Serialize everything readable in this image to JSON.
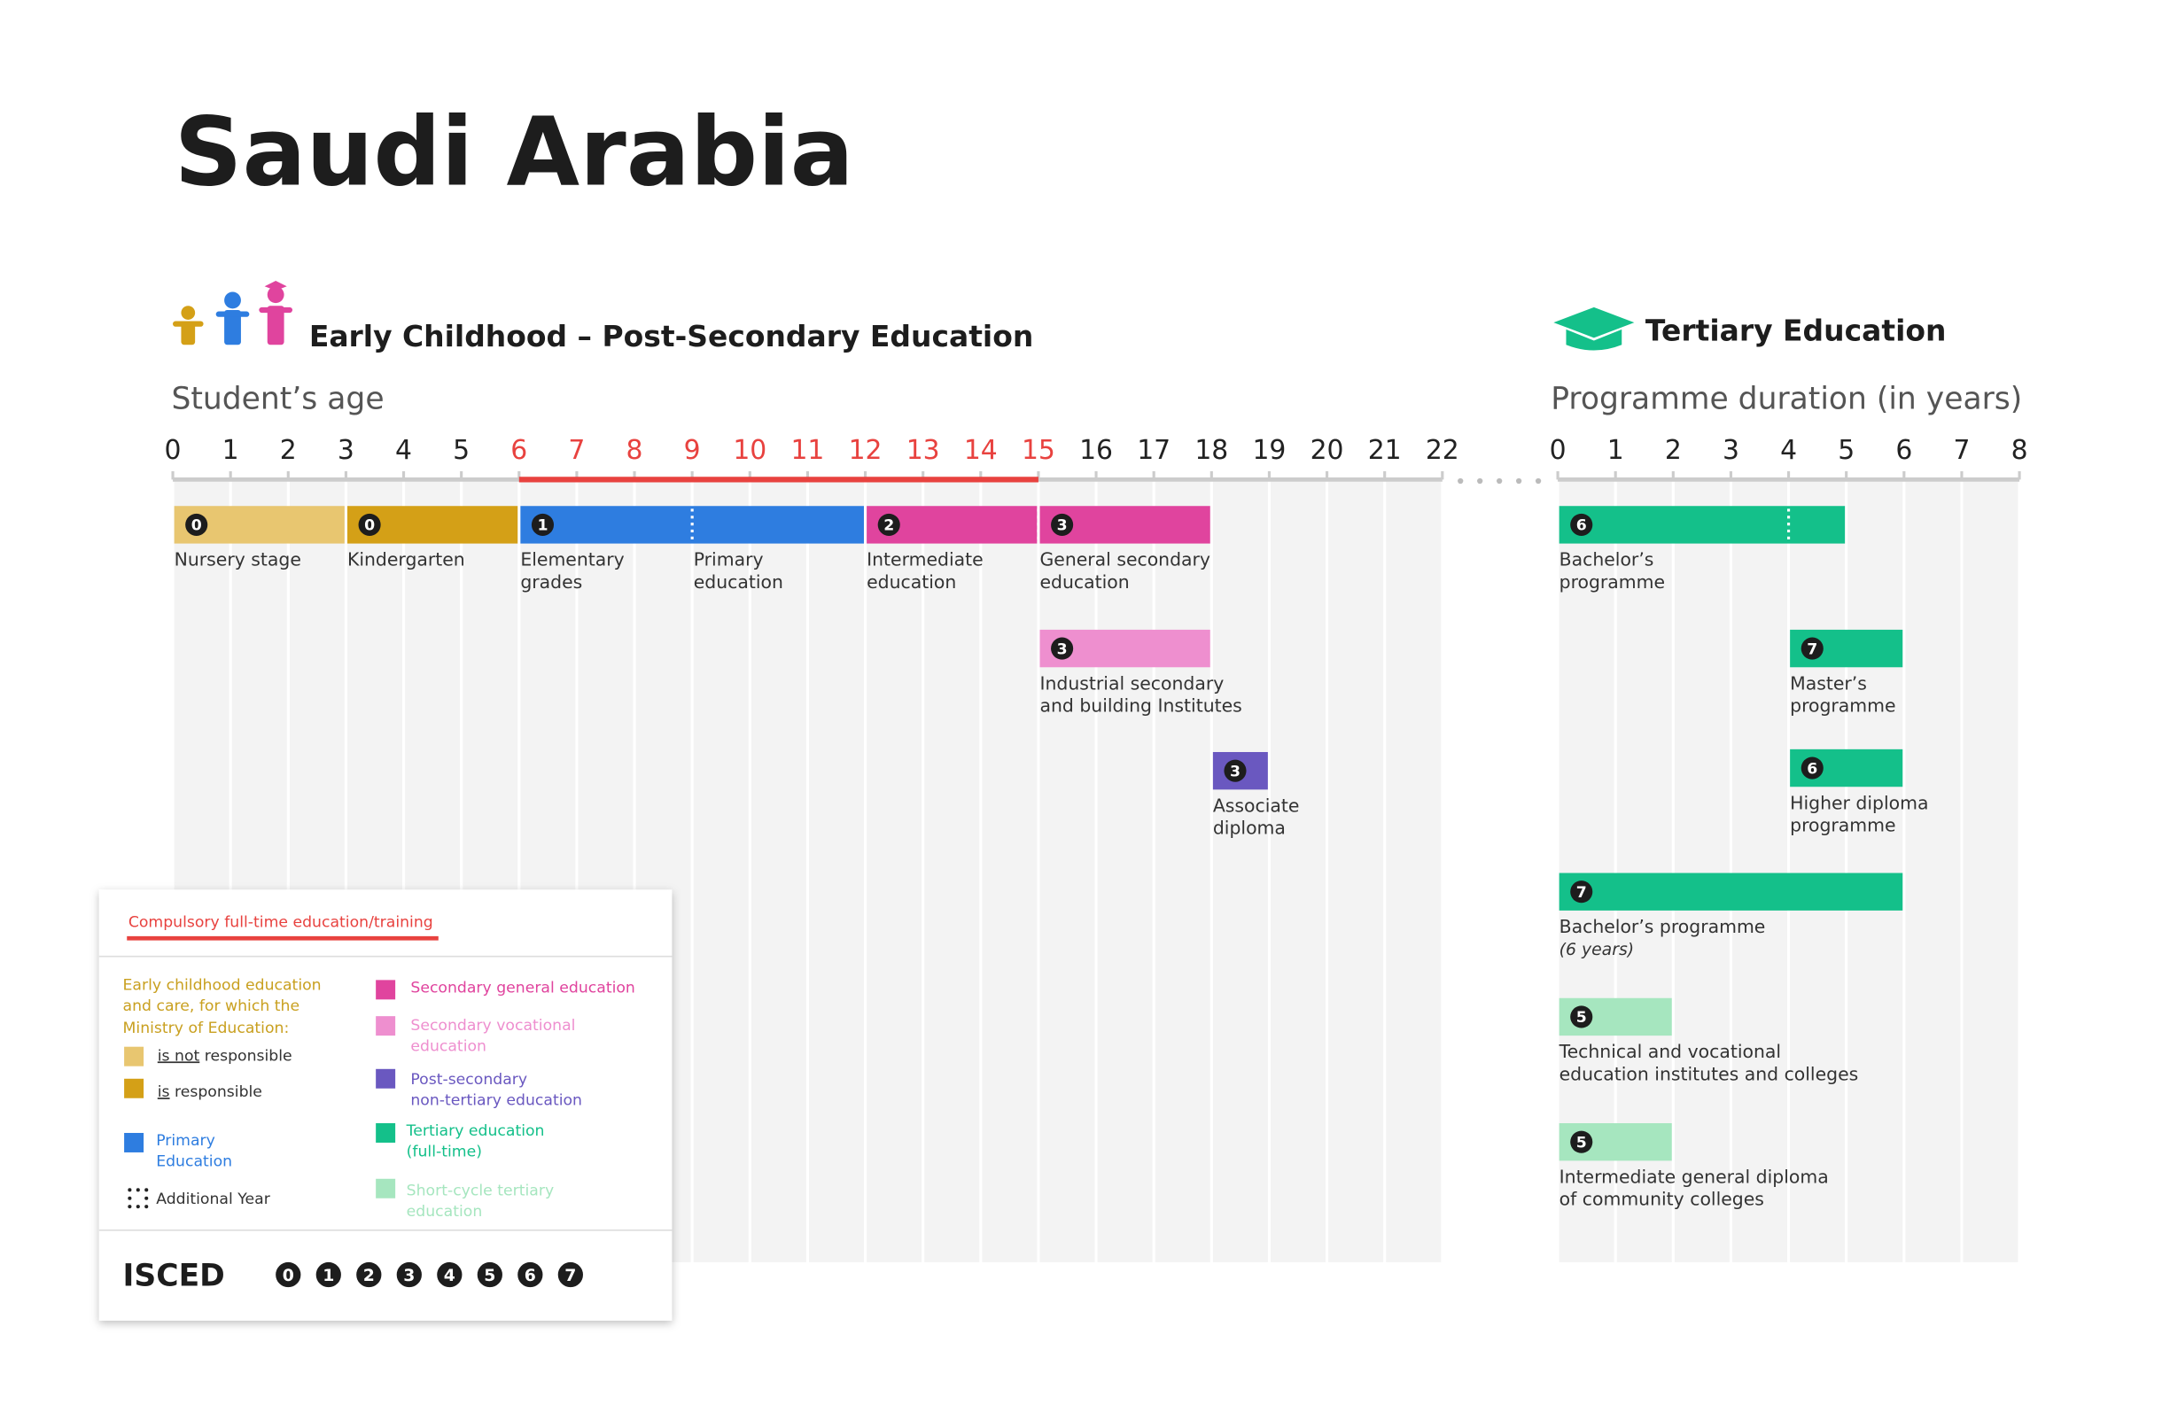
{
  "title": "Saudi Arabia",
  "left": {
    "heading": "Early Childhood – Post-Secondary Education",
    "axis_label": "Student’s age",
    "ticks": [
      0,
      1,
      2,
      3,
      4,
      5,
      6,
      7,
      8,
      9,
      10,
      11,
      12,
      13,
      14,
      15,
      16,
      17,
      18,
      19,
      20,
      21,
      22
    ],
    "compulsory": [
      6,
      15
    ],
    "programmes": [
      {
        "isced": "0",
        "from": 0,
        "to": 3,
        "color": "#e8c670",
        "labels": [
          {
            "at": 0,
            "lines": [
              "Nursery stage"
            ]
          }
        ]
      },
      {
        "isced": "0",
        "from": 3,
        "to": 6,
        "color": "#d4a017",
        "labels": [
          {
            "at": 3,
            "lines": [
              "Kindergarten"
            ]
          }
        ]
      },
      {
        "isced": "1",
        "from": 6,
        "to": 12,
        "dotted_at": 9,
        "color": "#2e7de0",
        "labels": [
          {
            "at": 6,
            "lines": [
              "Elementary",
              "grades"
            ]
          },
          {
            "at": 9,
            "lines": [
              "Primary",
              "education"
            ]
          }
        ]
      },
      {
        "isced": "2",
        "from": 12,
        "to": 15,
        "color": "#e0449e",
        "labels": [
          {
            "at": 12,
            "lines": [
              "Intermediate",
              "education"
            ]
          }
        ]
      },
      {
        "isced": "3",
        "from": 15,
        "to": 18,
        "dotted_at": 15,
        "color": "#e0449e",
        "labels": [
          {
            "at": 15,
            "lines": [
              "General secondary",
              "education"
            ]
          }
        ]
      },
      {
        "isced": "3",
        "from": 15,
        "to": 18,
        "color": "#ee8fcf",
        "labels": [
          {
            "at": 15,
            "lines": [
              "Industrial secondary",
              "and building Institutes"
            ]
          }
        ]
      },
      {
        "isced": "3",
        "from": 18,
        "to": 19,
        "color": "#6a58c0",
        "labels": [
          {
            "at": 18,
            "lines": [
              "Associate",
              "diploma"
            ]
          }
        ]
      }
    ]
  },
  "right": {
    "heading": "Tertiary Education",
    "axis_label": "Programme duration (in years)",
    "ticks": [
      0,
      1,
      2,
      3,
      4,
      5,
      6,
      7,
      8
    ],
    "programmes": [
      {
        "isced": "6",
        "from": 0,
        "to": 5,
        "dotted_at": 4,
        "color": "#14c08a",
        "labels": [
          {
            "at": 0,
            "lines": [
              "Bachelor’s",
              "programme"
            ]
          }
        ]
      },
      {
        "isced": "7",
        "from": 4,
        "to": 6,
        "color": "#14c08a",
        "labels": [
          {
            "at": 4,
            "lines": [
              "Master’s",
              "programme"
            ]
          }
        ]
      },
      {
        "isced": "6",
        "from": 4,
        "to": 6,
        "color": "#14c08a",
        "labels": [
          {
            "at": 4,
            "lines": [
              "Higher diploma",
              "programme"
            ]
          }
        ]
      },
      {
        "isced": "7",
        "from": 0,
        "to": 6,
        "color": "#14c08a",
        "labels": [
          {
            "at": 0,
            "lines": [
              "Bachelor’s programme"
            ],
            "note": "(6 years)"
          }
        ]
      },
      {
        "isced": "5",
        "from": 0,
        "to": 2,
        "color": "#a6e6bf",
        "labels": [
          {
            "at": 0,
            "lines": [
              "Technical and vocational",
              "education institutes and colleges"
            ]
          }
        ]
      },
      {
        "isced": "5",
        "from": 0,
        "to": 2,
        "color": "#a6e6bf",
        "labels": [
          {
            "at": 0,
            "lines": [
              "Intermediate general diploma",
              "of community colleges"
            ]
          }
        ]
      }
    ]
  },
  "legend": {
    "compulsory": "Compulsory full-time education/training",
    "early_childhood": [
      "Early childhood education",
      "and care, for which the",
      "Ministry of Education:"
    ],
    "not_responsible": {
      "underlined": "is not",
      "rest": "responsible"
    },
    "responsible": {
      "underlined": "is",
      "rest": "responsible"
    },
    "primary": [
      "Primary",
      "Education"
    ],
    "additional_year": "Additional Year",
    "secondary_general": [
      "Secondary general education"
    ],
    "secondary_vocational": [
      "Secondary vocational",
      "education"
    ],
    "post_secondary": [
      "Post-secondary",
      "non-tertiary education"
    ],
    "tertiary": [
      "Tertiary education",
      "(full-time)"
    ],
    "short_cycle": [
      "Short-cycle tertiary",
      "education"
    ]
  },
  "isced": {
    "label": "ISCED",
    "levels": [
      "0",
      "1",
      "2",
      "3",
      "4",
      "5",
      "6",
      "7"
    ]
  }
}
